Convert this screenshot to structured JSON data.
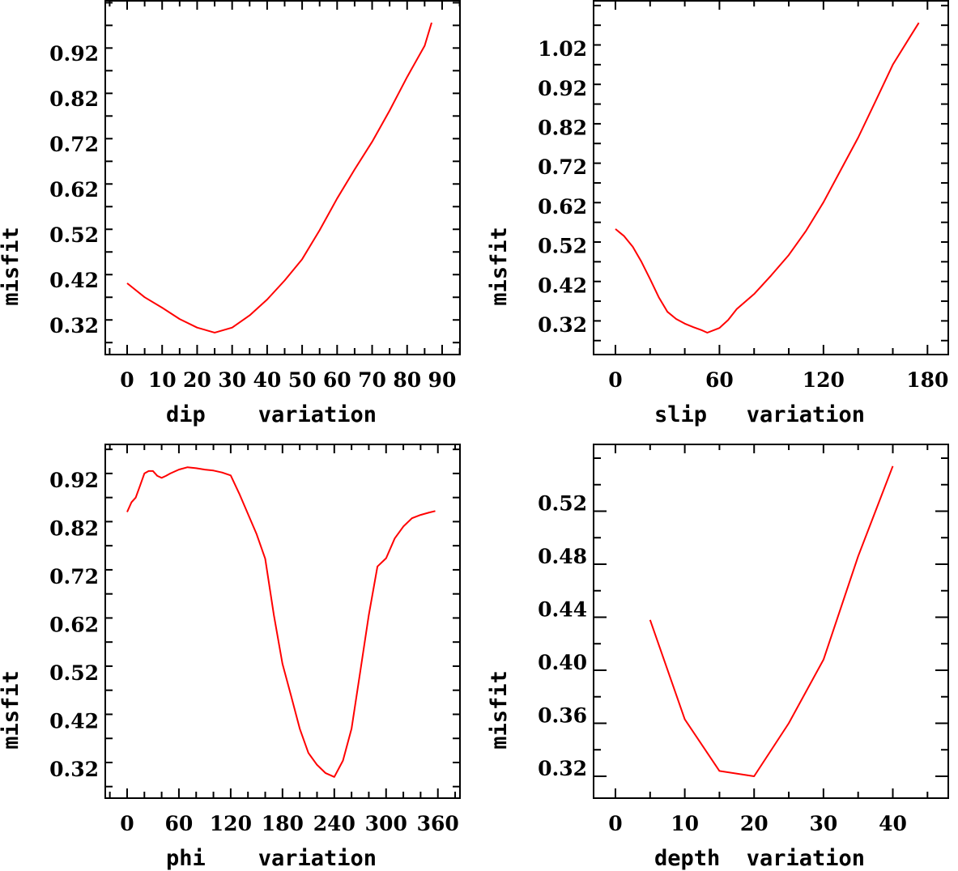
{
  "chart_data": [
    {
      "type": "line",
      "xlabel": "dip    variation",
      "ylabel": "misfit",
      "xlim": [
        -6.25,
        95.1
      ],
      "ylim": [
        0.2736,
        1.056
      ],
      "xticks": [
        0,
        10,
        20,
        30,
        40,
        50,
        60,
        70,
        80,
        90
      ],
      "xtick_labels": [
        "0",
        "10",
        "20",
        "30",
        "40",
        "50",
        "60",
        "70",
        "80",
        "90"
      ],
      "xminor": 5,
      "yticks": [
        0.32,
        0.42,
        0.52,
        0.62,
        0.72,
        0.82,
        0.92
      ],
      "ytick_labels": [
        "0.32",
        "0.42",
        "0.52",
        "0.62",
        "0.72",
        "0.82",
        "0.92"
      ],
      "yminor": 0.05,
      "grid": false,
      "color": "#ff0000",
      "x": [
        0,
        5,
        10,
        15,
        20,
        25,
        30,
        35,
        40,
        45,
        50,
        55,
        60,
        65,
        70,
        75,
        80,
        85,
        87
      ],
      "y": [
        0.431,
        0.4,
        0.377,
        0.352,
        0.333,
        0.322,
        0.333,
        0.36,
        0.395,
        0.437,
        0.484,
        0.548,
        0.618,
        0.682,
        0.743,
        0.812,
        0.886,
        0.955,
        1.006
      ]
    },
    {
      "type": "line",
      "xlabel": "slip   variation",
      "ylabel": "misfit",
      "xlim": [
        -12.6,
        192
      ],
      "ylim": [
        0.2646,
        1.164
      ],
      "xticks": [
        0,
        60,
        120,
        180
      ],
      "xtick_labels": [
        "0",
        "60",
        "120",
        "180"
      ],
      "xminor": 20,
      "yticks": [
        0.32,
        0.42,
        0.52,
        0.62,
        0.72,
        0.82,
        0.92,
        1.02
      ],
      "ytick_labels": [
        "0.32",
        "0.42",
        "0.52",
        "0.62",
        "0.72",
        "0.82",
        "0.92",
        "1.02"
      ],
      "yminor": 0.05,
      "grid": false,
      "color": "#ff0000",
      "x": [
        0,
        5,
        10,
        15,
        20,
        25,
        30,
        35,
        40,
        45,
        50,
        53,
        60,
        65,
        70,
        80,
        90,
        100,
        110,
        120,
        130,
        140,
        150,
        160,
        170,
        175
      ],
      "y": [
        0.583,
        0.565,
        0.538,
        0.5,
        0.456,
        0.41,
        0.373,
        0.355,
        0.343,
        0.334,
        0.326,
        0.32,
        0.332,
        0.352,
        0.38,
        0.418,
        0.466,
        0.517,
        0.579,
        0.651,
        0.733,
        0.815,
        0.907,
        1.0,
        1.071,
        1.106
      ]
    },
    {
      "type": "line",
      "xlabel": "phi    variation",
      "ylabel": "misfit",
      "xlim": [
        -25.3,
        385.6
      ],
      "ylim": [
        0.276,
        1.012
      ],
      "xticks": [
        0,
        60,
        120,
        180,
        240,
        300,
        360
      ],
      "xtick_labels": [
        "0",
        "60",
        "120",
        "180",
        "240",
        "300",
        "360"
      ],
      "xminor": 20,
      "yticks": [
        0.32,
        0.42,
        0.52,
        0.62,
        0.72,
        0.82,
        0.92
      ],
      "ytick_labels": [
        "0.32",
        "0.42",
        "0.52",
        "0.62",
        "0.72",
        "0.82",
        "0.92"
      ],
      "yminor": 0.05,
      "grid": false,
      "color": "#ff0000",
      "x": [
        0,
        5,
        10,
        15,
        20,
        25,
        30,
        35,
        40,
        45,
        50,
        60,
        70,
        80,
        90,
        100,
        110,
        120,
        130,
        140,
        150,
        160,
        170,
        180,
        190,
        200,
        210,
        220,
        230,
        240,
        250,
        260,
        270,
        280,
        290,
        300,
        310,
        320,
        330,
        340,
        350,
        357
      ],
      "y": [
        0.87,
        0.89,
        0.9,
        0.925,
        0.95,
        0.955,
        0.955,
        0.945,
        0.941,
        0.945,
        0.95,
        0.958,
        0.963,
        0.961,
        0.958,
        0.956,
        0.952,
        0.946,
        0.908,
        0.866,
        0.824,
        0.773,
        0.656,
        0.555,
        0.488,
        0.42,
        0.37,
        0.345,
        0.328,
        0.32,
        0.354,
        0.42,
        0.538,
        0.656,
        0.757,
        0.774,
        0.815,
        0.84,
        0.857,
        0.864,
        0.869,
        0.872
      ]
    },
    {
      "type": "line",
      "xlabel": "depth  variation",
      "ylabel": "misfit",
      "xlim": [
        -3.15,
        48.0
      ],
      "ylim": [
        0.3035,
        0.571
      ],
      "xticks": [
        0,
        10,
        20,
        30,
        40
      ],
      "xtick_labels": [
        "0",
        "10",
        "20",
        "30",
        "40"
      ],
      "xminor": 5,
      "yticks": [
        0.32,
        0.36,
        0.4,
        0.44,
        0.48,
        0.52
      ],
      "ytick_labels": [
        "0.32",
        "0.36",
        "0.40",
        "0.44",
        "0.48",
        "0.52"
      ],
      "yminor": 0.02,
      "grid": false,
      "color": "#ff0000",
      "x": [
        5,
        10,
        15,
        20,
        25,
        30,
        35,
        40
      ],
      "y": [
        0.438,
        0.363,
        0.324,
        0.32,
        0.36,
        0.408,
        0.486,
        0.554
      ]
    }
  ]
}
